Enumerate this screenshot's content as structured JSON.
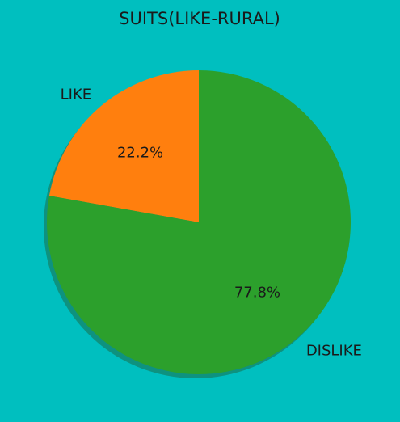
{
  "chart_data": {
    "type": "pie",
    "title": "SUITS(LIKE-RURAL)",
    "slices": [
      {
        "label": "LIKE",
        "value": 22.2,
        "pct_label": "22.2%",
        "color": "#FF7F0E"
      },
      {
        "label": "DISLIKE",
        "value": 77.8,
        "pct_label": "77.8%",
        "color": "#2CA02C"
      }
    ],
    "start_angle_deg": 90,
    "direction": "counterclockwise",
    "shadow": true
  },
  "colors": {
    "background": "#00BFBF",
    "shadow": "#1a6e4a"
  }
}
